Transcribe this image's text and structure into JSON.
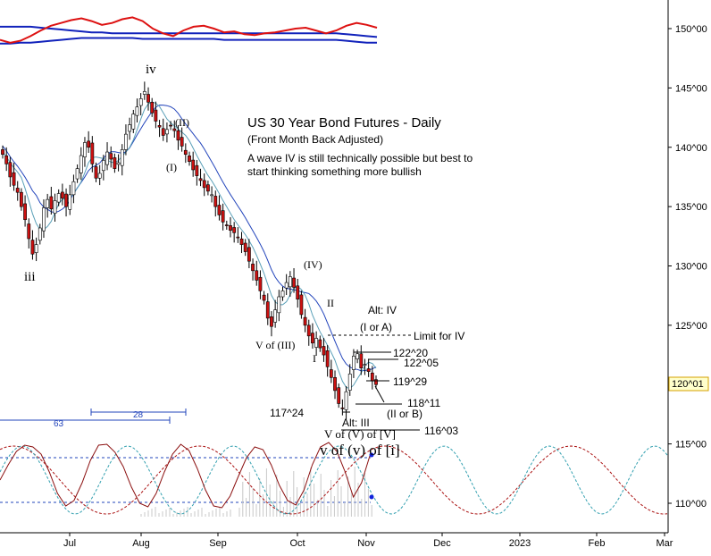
{
  "chart_data": {
    "type": "candlestick",
    "title": "US 30 Year Bond Futures - Daily",
    "subtitle": "(Front Month Back Adjusted)",
    "note_lines": [
      "A wave IV is still technically possible but best to",
      "start thinking something more bullish"
    ],
    "y_ticks": [
      "150^00",
      "145^00",
      "140^00",
      "135^00",
      "130^00",
      "125^00",
      "120^00",
      "115^00",
      "110^00"
    ],
    "y_tick_values": [
      150,
      145,
      140,
      135,
      130,
      125,
      120,
      115,
      110
    ],
    "x_ticks": [
      "Jul",
      "Aug",
      "Sep",
      "Oct",
      "Nov",
      "Dec",
      "2023",
      "Feb",
      "Mar"
    ],
    "last_price_label": "120^01",
    "last_price": 120.03,
    "colors": {
      "bear_candle": "#cc1111",
      "bull_candle": "#ffffff",
      "ma_fast": "#5aa0b8",
      "ma_slow": "#2244bb",
      "osc_red": "#dd1111",
      "osc_blue": "#1122bb",
      "cycle_red": "#aa1111",
      "cycle_teal": "#33a0b0",
      "label_border": "#d4a000"
    },
    "closes": [
      139.4,
      138.6,
      137.5,
      136.8,
      136.2,
      135.0,
      133.9,
      132.3,
      131.0,
      131.8,
      133.2,
      134.9,
      135.6,
      134.8,
      135.5,
      136.1,
      135.7,
      135.0,
      136.0,
      137.1,
      138.2,
      139.3,
      140.4,
      140.0,
      138.6,
      137.4,
      137.8,
      138.9,
      139.6,
      139.0,
      138.2,
      138.7,
      139.8,
      141.1,
      141.9,
      142.8,
      143.4,
      144.1,
      144.7,
      143.8,
      142.9,
      142.2,
      141.7,
      141.0,
      141.5,
      141.8,
      141.4,
      140.6,
      140.1,
      139.4,
      138.8,
      138.1,
      137.6,
      137.2,
      136.6,
      136.3,
      136.0,
      135.0,
      134.3,
      133.7,
      133.4,
      133.0,
      132.8,
      132.4,
      131.8,
      131.2,
      130.4,
      129.6,
      128.8,
      127.9,
      127.1,
      125.6,
      124.9,
      126.3,
      127.4,
      127.9,
      128.6,
      129.1,
      128.2,
      127.2,
      125.9,
      125.0,
      124.1,
      123.5,
      123.9,
      123.1,
      122.5,
      121.5,
      120.6,
      119.5,
      118.4,
      118.0,
      119.4,
      120.9,
      122.4,
      122.6,
      121.4,
      121.7,
      121.1,
      120.3,
      120.0
    ],
    "osc_red": [
      48,
      45,
      47,
      52,
      58,
      63,
      66,
      69,
      71,
      68,
      64,
      66,
      70,
      72,
      68,
      60,
      55,
      52,
      58,
      62,
      63,
      60,
      56,
      57,
      54,
      53,
      55,
      56,
      58,
      60,
      61,
      58,
      55,
      58,
      63,
      66,
      64,
      61
    ],
    "osc_blue_upper": [
      62,
      62,
      62,
      62,
      61,
      60,
      59,
      58,
      57,
      56,
      56,
      55,
      55,
      55,
      55,
      55,
      55,
      55,
      55,
      55,
      55,
      55,
      55,
      55,
      55,
      55,
      55,
      55,
      55,
      55,
      55,
      55,
      55,
      55,
      54,
      53,
      52,
      51
    ],
    "osc_blue_lower": [
      44,
      44,
      45,
      45,
      46,
      47,
      48,
      49,
      50,
      50,
      50,
      50,
      50,
      50,
      49,
      49,
      49,
      49,
      49,
      49,
      49,
      49,
      48,
      48,
      48,
      48,
      48,
      48,
      48,
      48,
      48,
      48,
      48,
      48,
      47,
      46,
      45,
      45
    ],
    "cycle_labels": [
      "63",
      "28"
    ],
    "wave_labels": {
      "iv": "iv",
      "iii": "iii",
      "II": "(II)",
      "I": "(I)",
      "IV": "(IV)",
      "ii": "II",
      "V_of_III": "V of (III)",
      "i": "I",
      "alt_iv": "Alt: IV",
      "i_or_a": "(I or A)",
      "limit_iv": "Limit for IV",
      "p122_20": "122^20",
      "p122_05": "122^05",
      "p119_29": "119^29",
      "p118_11": "118^11",
      "ii_or_b": "(II or B)",
      "p117_24": "117^24",
      "alt_iii": "Alt: III",
      "p116_03": "116^03",
      "v_of_v": "V of (V) of [V]",
      "v_of_i": "v of (v) of [i]"
    }
  }
}
